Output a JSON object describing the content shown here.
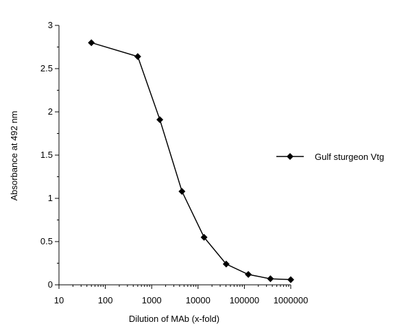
{
  "chart_data": {
    "type": "line",
    "xlabel": "Dilution of MAb (x-fold)",
    "ylabel": "Absorbance at  492 nm",
    "x_scale": "log",
    "xlim": [
      10,
      1000000
    ],
    "ylim": [
      0,
      3
    ],
    "x_ticks": [
      "10",
      "100",
      "1000",
      "10000",
      "100000",
      "1000000"
    ],
    "y_ticks": [
      "0",
      "0.5",
      "1",
      "1.5",
      "2",
      "2.5",
      "3"
    ],
    "grid": false,
    "legend_position": "right",
    "series": [
      {
        "name": "Gulf sturgeon Vtg",
        "marker": "diamond",
        "color": "#000000",
        "x": [
          50,
          500,
          1500,
          4500,
          13500,
          40500,
          121500,
          364500,
          1000000
        ],
        "y": [
          2.8,
          2.64,
          1.91,
          1.08,
          0.55,
          0.24,
          0.12,
          0.07,
          0.06
        ]
      }
    ]
  }
}
